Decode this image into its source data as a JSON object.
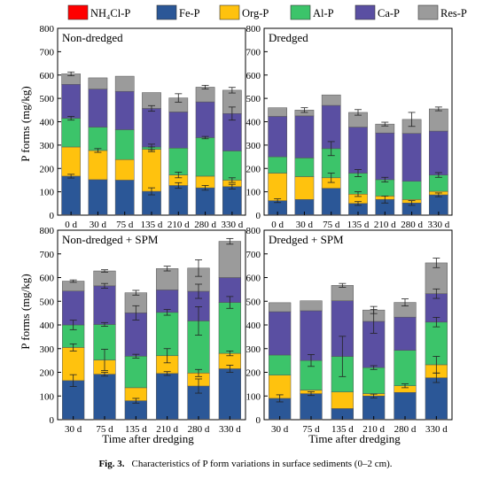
{
  "legend": [
    {
      "name": "NH₄Cl-P",
      "color": "#ff0000"
    },
    {
      "name": "Fe-P",
      "color": "#2b5797"
    },
    {
      "name": "Org-P",
      "color": "#ffc20e"
    },
    {
      "name": "Al-P",
      "color": "#3cc46a"
    },
    {
      "name": "Ca-P",
      "color": "#5a4fa2"
    },
    {
      "name": "Res-P",
      "color": "#9b9b9b"
    }
  ],
  "ylabel": "P forms (mg/kg)",
  "xlabel": "Time after dredging",
  "caption": {
    "label": "Fig. 3.",
    "text": "Characteristics of P form variations in surface sediments (0–2 cm)."
  },
  "chart_data": [
    {
      "type": "bar",
      "stacked": true,
      "title": "Non-dredged",
      "ylim": [
        0,
        800
      ],
      "yticks": [
        0,
        100,
        200,
        300,
        400,
        500,
        600,
        700,
        800
      ],
      "categories": [
        "0 d",
        "30 d",
        "75 d",
        "135 d",
        "210 d",
        "280 d",
        "330 d"
      ],
      "series": [
        {
          "name": "NH₄Cl-P",
          "values": [
            2,
            2,
            2,
            2,
            2,
            2,
            2
          ]
        },
        {
          "name": "Fe-P",
          "values": [
            165,
            150,
            148,
            100,
            125,
            115,
            120
          ]
        },
        {
          "name": "Org-P",
          "values": [
            125,
            125,
            88,
            180,
            45,
            50,
            28
          ]
        },
        {
          "name": "Al-P",
          "values": [
            123,
            100,
            128,
            10,
            115,
            165,
            125
          ]
        },
        {
          "name": "Ca-P",
          "values": [
            145,
            163,
            164,
            165,
            155,
            153,
            160
          ]
        },
        {
          "name": "Res-P",
          "values": [
            45,
            48,
            65,
            68,
            60,
            63,
            100
          ]
        }
      ],
      "error_bars": [
        {
          "series": "Fe-P",
          "values": [
            8,
            0,
            0,
            15,
            12,
            10,
            10
          ]
        },
        {
          "series": "Org-P",
          "values": [
            0,
            8,
            0,
            10,
            12,
            0,
            10
          ]
        },
        {
          "series": "Al-P",
          "values": [
            8,
            0,
            0,
            12,
            0,
            5,
            0
          ]
        },
        {
          "series": "Ca-P",
          "values": [
            0,
            0,
            0,
            12,
            0,
            0,
            28
          ]
        },
        {
          "series": "Res-P",
          "values": [
            8,
            0,
            0,
            0,
            18,
            8,
            12
          ]
        }
      ]
    },
    {
      "type": "bar",
      "stacked": true,
      "title": "Dredged",
      "ylim": [
        0,
        800
      ],
      "yticks": [
        0,
        100,
        200,
        300,
        400,
        500,
        600,
        700,
        800
      ],
      "categories": [
        "0 d",
        "30 d",
        "75 d",
        "135 d",
        "210 d",
        "280 d",
        "330 d"
      ],
      "series": [
        {
          "name": "NH₄Cl-P",
          "values": [
            2,
            2,
            2,
            2,
            2,
            2,
            2
          ]
        },
        {
          "name": "Fe-P",
          "values": [
            60,
            65,
            113,
            48,
            65,
            50,
            85
          ]
        },
        {
          "name": "Org-P",
          "values": [
            118,
            98,
            45,
            40,
            15,
            15,
            15
          ]
        },
        {
          "name": "Al-P",
          "values": [
            70,
            80,
            125,
            90,
            70,
            78,
            70
          ]
        },
        {
          "name": "Ca-P",
          "values": [
            173,
            180,
            185,
            197,
            200,
            205,
            188
          ]
        },
        {
          "name": "Res-P",
          "values": [
            37,
            25,
            45,
            63,
            38,
            60,
            95
          ]
        }
      ],
      "error_bars": [
        {
          "series": "Fe-P",
          "values": [
            8,
            0,
            0,
            8,
            15,
            10,
            8
          ]
        },
        {
          "series": "Org-P",
          "values": [
            0,
            0,
            20,
            10,
            0,
            0,
            0
          ]
        },
        {
          "series": "Al-P",
          "values": [
            0,
            0,
            30,
            15,
            10,
            0,
            10
          ]
        },
        {
          "series": "Ca-P",
          "values": [
            0,
            0,
            0,
            0,
            0,
            0,
            0
          ]
        },
        {
          "series": "Res-P",
          "values": [
            0,
            10,
            0,
            12,
            8,
            30,
            8
          ]
        }
      ]
    },
    {
      "type": "bar",
      "stacked": true,
      "title": "Non-dredged + SPM",
      "ylim": [
        0,
        800
      ],
      "yticks": [
        0,
        100,
        200,
        300,
        400,
        500,
        600,
        700,
        800
      ],
      "categories": [
        "30 d",
        "75 d",
        "135 d",
        "210 d",
        "280 d",
        "330 d"
      ],
      "series": [
        {
          "name": "NH₄Cl-P",
          "values": [
            2,
            2,
            2,
            2,
            2,
            2
          ]
        },
        {
          "name": "Fe-P",
          "values": [
            163,
            190,
            78,
            193,
            140,
            213
          ]
        },
        {
          "name": "Org-P",
          "values": [
            140,
            60,
            55,
            75,
            55,
            65
          ]
        },
        {
          "name": "Al-P",
          "values": [
            95,
            150,
            133,
            183,
            220,
            215
          ]
        },
        {
          "name": "Ca-P",
          "values": [
            143,
            163,
            183,
            95,
            125,
            105
          ]
        },
        {
          "name": "Res-P",
          "values": [
            42,
            63,
            85,
            90,
            98,
            153
          ]
        }
      ],
      "error_bars": [
        {
          "series": "Fe-P",
          "values": [
            25,
            8,
            10,
            8,
            30,
            15
          ]
        },
        {
          "series": "Org-P",
          "values": [
            15,
            45,
            0,
            30,
            15,
            10
          ]
        },
        {
          "series": "Al-P",
          "values": [
            20,
            8,
            8,
            12,
            60,
            25
          ]
        },
        {
          "series": "Ca-P",
          "values": [
            0,
            10,
            30,
            0,
            30,
            0
          ]
        },
        {
          "series": "Res-P",
          "values": [
            5,
            5,
            10,
            10,
            35,
            12
          ]
        }
      ]
    },
    {
      "type": "bar",
      "stacked": true,
      "title": "Dredged + SPM",
      "ylim": [
        0,
        800
      ],
      "yticks": [
        0,
        100,
        200,
        300,
        400,
        500,
        600,
        700,
        800
      ],
      "categories": [
        "30 d",
        "75 d",
        "135 d",
        "210 d",
        "280 d",
        "330 d"
      ],
      "series": [
        {
          "name": "NH₄Cl-P",
          "values": [
            2,
            2,
            2,
            2,
            2,
            2
          ]
        },
        {
          "name": "Fe-P",
          "values": [
            88,
            108,
            45,
            98,
            113,
            175
          ]
        },
        {
          "name": "Org-P",
          "values": [
            98,
            15,
            70,
            10,
            28,
            55
          ]
        },
        {
          "name": "Al-P",
          "values": [
            85,
            125,
            150,
            110,
            150,
            180
          ]
        },
        {
          "name": "Ca-P",
          "values": [
            183,
            210,
            235,
            195,
            140,
            120
          ]
        },
        {
          "name": "Res-P",
          "values": [
            38,
            42,
            65,
            48,
            62,
            130
          ]
        }
      ],
      "error_bars": [
        {
          "series": "Fe-P",
          "values": [
            15,
            8,
            0,
            8,
            0,
            20
          ]
        },
        {
          "series": "Org-P",
          "values": [
            0,
            0,
            0,
            0,
            8,
            35
          ]
        },
        {
          "series": "Al-P",
          "values": [
            0,
            25,
            85,
            8,
            0,
            20
          ]
        },
        {
          "series": "Ca-P",
          "values": [
            0,
            0,
            0,
            50,
            0,
            20
          ]
        },
        {
          "series": "Res-P",
          "values": [
            0,
            0,
            8,
            15,
            15,
            20
          ]
        }
      ]
    }
  ]
}
